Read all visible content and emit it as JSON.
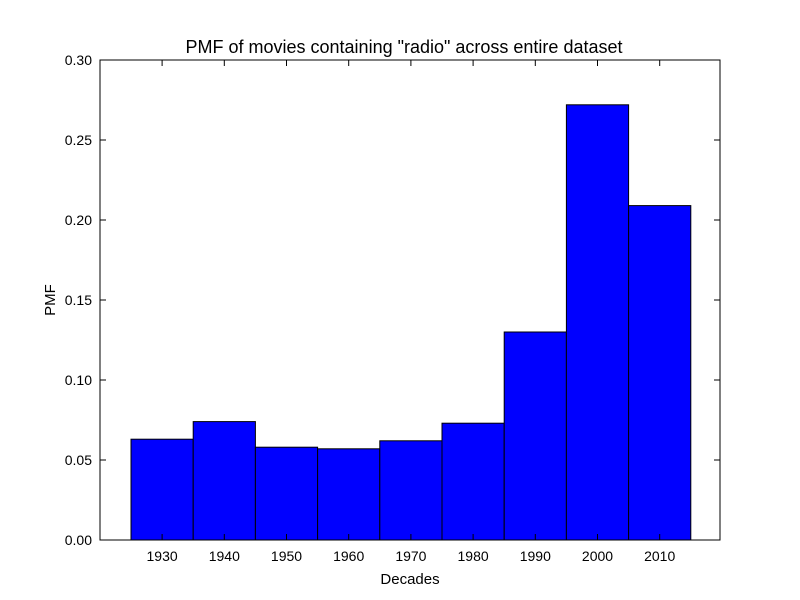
{
  "chart_data": {
    "type": "bar",
    "title": "PMF of movies containing \"radio\" across entire dataset",
    "xlabel": "Decades",
    "ylabel": "PMF",
    "categories": [
      "1930",
      "1940",
      "1950",
      "1960",
      "1970",
      "1980",
      "1990",
      "2000",
      "2010"
    ],
    "values": [
      0.063,
      0.074,
      0.058,
      0.057,
      0.062,
      0.073,
      0.13,
      0.272,
      0.209
    ],
    "ylim": [
      0,
      0.3
    ],
    "yticks": [
      "0.00",
      "0.05",
      "0.10",
      "0.15",
      "0.20",
      "0.25",
      "0.30"
    ],
    "grid": false,
    "bar_color": "#0000ff",
    "edge_color": "#000000"
  }
}
